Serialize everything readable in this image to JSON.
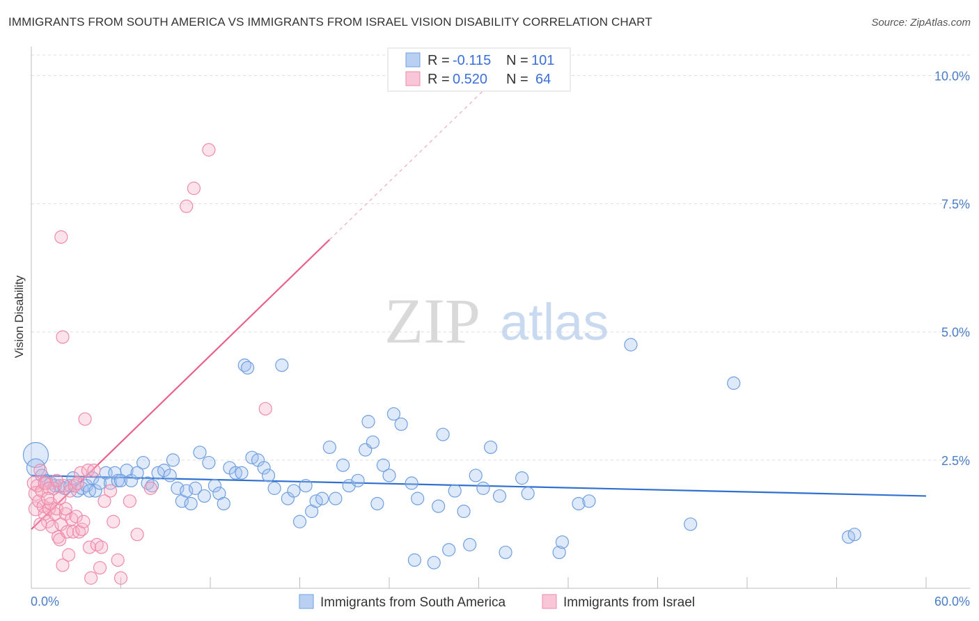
{
  "title": "IMMIGRANTS FROM SOUTH AMERICA VS IMMIGRANTS FROM ISRAEL VISION DISABILITY CORRELATION CHART",
  "source": "Source: ZipAtlas.com",
  "watermark": {
    "zip": "ZIP",
    "atlas": "atlas"
  },
  "colors": {
    "blue": "#6f9fe0",
    "blue_line": "#2f6fcf",
    "pink": "#ef8aaa",
    "pink_line": "#e8608a",
    "tick": "#4a7cc7"
  },
  "legend_box": {
    "rows": [
      {
        "r_label": "R = ",
        "r_value": "-0.115",
        "n_label": "N = ",
        "n_value": "101"
      },
      {
        "r_label": "R = ",
        "r_value": "0.520",
        "n_label": "N = ",
        "n_value": "64"
      }
    ]
  },
  "chart_data": {
    "type": "scatter",
    "title": "IMMIGRANTS FROM SOUTH AMERICA VS IMMIGRANTS FROM ISRAEL VISION DISABILITY CORRELATION CHART",
    "xlabel": "",
    "ylabel": "Vision Disability",
    "xlim": [
      0,
      60
    ],
    "ylim": [
      0,
      10.4
    ],
    "x_tick_labels": [
      "0.0%",
      "60.0%"
    ],
    "y_ticks": [
      2.5,
      5.0,
      7.5,
      10.0
    ],
    "y_tick_labels": [
      "2.5%",
      "5.0%",
      "7.5%",
      "10.0%"
    ],
    "grid": true,
    "legend_position": "bottom",
    "series": [
      {
        "name": "Immigrants from South America",
        "color": "#6f9fe0",
        "trend": {
          "x": [
            0,
            60
          ],
          "y": [
            2.2,
            1.8
          ]
        },
        "points": [
          [
            0.3,
            2.6,
            18
          ],
          [
            0.3,
            2.35,
            13
          ],
          [
            0.7,
            2.2,
            9
          ],
          [
            1.0,
            2.1,
            9
          ],
          [
            1.3,
            2.05,
            9
          ],
          [
            1.6,
            2.0,
            9
          ],
          [
            1.9,
            2.0,
            9
          ],
          [
            2.2,
            1.95,
            9
          ],
          [
            2.6,
            2.0,
            9
          ],
          [
            2.8,
            2.15,
            9
          ],
          [
            3.1,
            1.9,
            9
          ],
          [
            3.4,
            1.95,
            9
          ],
          [
            3.7,
            2.0,
            9
          ],
          [
            3.9,
            1.9,
            9
          ],
          [
            4.1,
            2.15,
            9
          ],
          [
            4.3,
            1.9,
            9
          ],
          [
            4.6,
            2.05,
            9
          ],
          [
            5.0,
            2.25,
            9
          ],
          [
            5.3,
            2.05,
            9
          ],
          [
            5.6,
            2.25,
            9
          ],
          [
            5.8,
            2.1,
            9
          ],
          [
            6.0,
            2.1,
            9
          ],
          [
            6.4,
            2.3,
            9
          ],
          [
            6.7,
            2.1,
            9
          ],
          [
            7.1,
            2.25,
            9
          ],
          [
            7.5,
            2.45,
            9
          ],
          [
            7.8,
            2.05,
            9
          ],
          [
            8.1,
            2.0,
            9
          ],
          [
            8.5,
            2.25,
            9
          ],
          [
            8.9,
            2.3,
            9
          ],
          [
            9.3,
            2.2,
            9
          ],
          [
            9.5,
            2.5,
            9
          ],
          [
            9.8,
            1.95,
            9
          ],
          [
            10.1,
            1.7,
            9
          ],
          [
            10.4,
            1.9,
            9
          ],
          [
            10.7,
            1.65,
            9
          ],
          [
            11.0,
            1.95,
            9
          ],
          [
            11.3,
            2.65,
            9
          ],
          [
            11.6,
            1.8,
            9
          ],
          [
            11.9,
            2.45,
            9
          ],
          [
            12.3,
            2.0,
            9
          ],
          [
            12.6,
            1.85,
            9
          ],
          [
            12.9,
            1.65,
            9
          ],
          [
            13.3,
            2.35,
            9
          ],
          [
            13.7,
            2.25,
            9
          ],
          [
            14.1,
            2.25,
            9
          ],
          [
            14.3,
            4.35,
            9
          ],
          [
            14.5,
            4.3,
            9
          ],
          [
            14.8,
            2.55,
            9
          ],
          [
            15.2,
            2.5,
            9
          ],
          [
            15.6,
            2.35,
            9
          ],
          [
            15.9,
            2.2,
            9
          ],
          [
            16.3,
            1.95,
            9
          ],
          [
            16.8,
            4.35,
            9
          ],
          [
            17.2,
            1.75,
            9
          ],
          [
            17.6,
            1.9,
            9
          ],
          [
            18.0,
            1.3,
            9
          ],
          [
            18.4,
            2.0,
            9
          ],
          [
            18.8,
            1.5,
            9
          ],
          [
            19.1,
            1.7,
            9
          ],
          [
            19.5,
            1.75,
            9
          ],
          [
            20.0,
            2.75,
            9
          ],
          [
            20.4,
            1.75,
            9
          ],
          [
            20.9,
            2.4,
            9
          ],
          [
            21.3,
            2.0,
            9
          ],
          [
            21.9,
            2.1,
            9
          ],
          [
            22.4,
            2.7,
            9
          ],
          [
            22.6,
            3.25,
            9
          ],
          [
            22.9,
            2.85,
            9
          ],
          [
            23.2,
            1.65,
            9
          ],
          [
            23.6,
            2.4,
            9
          ],
          [
            24.0,
            2.2,
            9
          ],
          [
            24.3,
            3.4,
            9
          ],
          [
            24.8,
            3.2,
            9
          ],
          [
            25.5,
            2.05,
            9
          ],
          [
            25.7,
            0.55,
            9
          ],
          [
            25.9,
            1.75,
            9
          ],
          [
            27.0,
            0.5,
            9
          ],
          [
            27.3,
            1.6,
            9
          ],
          [
            27.6,
            3.0,
            9
          ],
          [
            28.0,
            0.75,
            9
          ],
          [
            28.4,
            1.9,
            9
          ],
          [
            29.0,
            1.5,
            9
          ],
          [
            29.4,
            0.85,
            9
          ],
          [
            29.8,
            2.2,
            9
          ],
          [
            30.3,
            1.95,
            9
          ],
          [
            30.8,
            2.75,
            9
          ],
          [
            31.4,
            1.8,
            9
          ],
          [
            31.8,
            0.7,
            9
          ],
          [
            32.9,
            2.15,
            9
          ],
          [
            33.3,
            1.85,
            9
          ],
          [
            35.4,
            0.7,
            9
          ],
          [
            35.6,
            0.9,
            9
          ],
          [
            36.7,
            1.65,
            9
          ],
          [
            37.4,
            1.7,
            9
          ],
          [
            40.2,
            4.75,
            9
          ],
          [
            44.2,
            1.25,
            9
          ],
          [
            47.1,
            4.0,
            9
          ],
          [
            54.8,
            1.0,
            9
          ],
          [
            55.2,
            1.05,
            9
          ]
        ]
      },
      {
        "name": "Immigrants from Israel",
        "color": "#ef8aaa",
        "trend": {
          "x": [
            0,
            20.0
          ],
          "y": [
            1.15,
            6.8
          ]
        },
        "trend_extension": {
          "x": [
            20.0,
            31.0
          ],
          "y": [
            6.8,
            9.9
          ]
        },
        "points": [
          [
            0.2,
            2.05,
            10
          ],
          [
            0.3,
            1.85,
            10
          ],
          [
            0.3,
            1.55,
            10
          ],
          [
            0.4,
            2.0,
            9
          ],
          [
            0.5,
            1.7,
            9
          ],
          [
            0.6,
            2.3,
            9
          ],
          [
            0.7,
            1.9,
            9
          ],
          [
            0.8,
            1.6,
            9
          ],
          [
            0.9,
            1.45,
            9
          ],
          [
            1.0,
            2.05,
            9
          ],
          [
            1.1,
            1.3,
            9
          ],
          [
            1.2,
            1.55,
            9
          ],
          [
            1.3,
            1.65,
            9
          ],
          [
            1.4,
            1.2,
            9
          ],
          [
            1.5,
            1.95,
            9
          ],
          [
            1.6,
            1.45,
            9
          ],
          [
            1.7,
            1.55,
            9
          ],
          [
            1.8,
            1.0,
            9
          ],
          [
            1.9,
            0.95,
            9
          ],
          [
            2.0,
            1.25,
            9
          ],
          [
            2.1,
            0.45,
            9
          ],
          [
            2.2,
            2.0,
            9
          ],
          [
            2.3,
            1.45,
            9
          ],
          [
            2.4,
            1.1,
            9
          ],
          [
            2.5,
            0.65,
            9
          ],
          [
            2.6,
            1.9,
            9
          ],
          [
            2.7,
            1.35,
            9
          ],
          [
            2.8,
            1.1,
            9
          ],
          [
            2.9,
            2.0,
            9
          ],
          [
            2.0,
            6.85,
            9
          ],
          [
            2.1,
            4.9,
            9
          ],
          [
            3.0,
            1.4,
            9
          ],
          [
            3.2,
            1.1,
            9
          ],
          [
            3.3,
            2.25,
            9
          ],
          [
            3.4,
            1.15,
            9
          ],
          [
            3.5,
            1.3,
            9
          ],
          [
            3.6,
            3.3,
            9
          ],
          [
            3.8,
            2.3,
            9
          ],
          [
            3.9,
            0.8,
            9
          ],
          [
            4.0,
            0.2,
            9
          ],
          [
            4.2,
            2.3,
            9
          ],
          [
            4.4,
            0.85,
            9
          ],
          [
            4.6,
            0.4,
            9
          ],
          [
            4.7,
            0.8,
            9
          ],
          [
            4.9,
            1.7,
            9
          ],
          [
            5.3,
            1.9,
            9
          ],
          [
            5.5,
            1.3,
            9
          ],
          [
            5.8,
            0.55,
            9
          ],
          [
            6.0,
            0.2,
            9
          ],
          [
            6.6,
            1.7,
            9
          ],
          [
            7.1,
            1.05,
            9
          ],
          [
            8.0,
            1.95,
            9
          ],
          [
            10.4,
            7.45,
            9
          ],
          [
            10.9,
            7.8,
            9
          ],
          [
            11.9,
            8.55,
            9
          ],
          [
            15.7,
            3.5,
            9
          ],
          [
            0.9,
            2.05,
            9
          ],
          [
            1.2,
            1.95,
            9
          ],
          [
            1.7,
            2.1,
            9
          ],
          [
            2.3,
            1.55,
            9
          ],
          [
            3.1,
            2.05,
            9
          ],
          [
            0.6,
            1.25,
            9
          ],
          [
            1.1,
            1.75,
            9
          ],
          [
            1.9,
            1.75,
            9
          ]
        ]
      }
    ]
  }
}
